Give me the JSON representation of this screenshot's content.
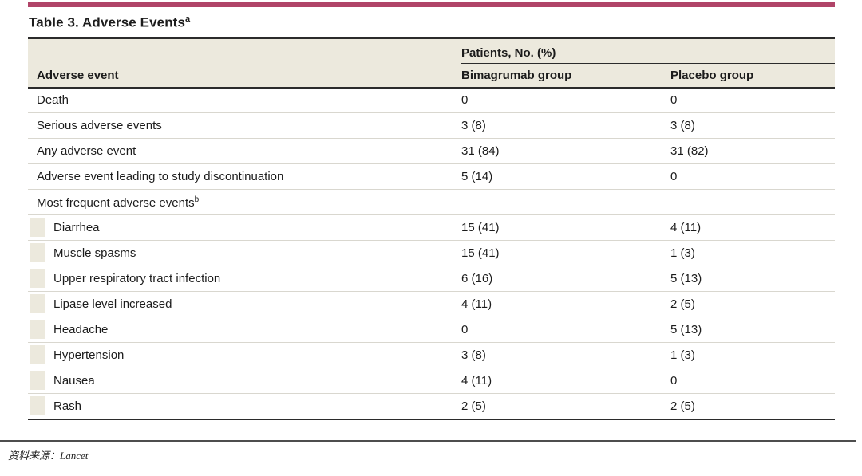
{
  "colors": {
    "accent_bar": "#b04468",
    "header_background": "#ece9dd",
    "rule_dark": "#2b2b2b",
    "row_separator": "#d9d7cf"
  },
  "title": {
    "text": "Table 3. Adverse Events",
    "sup": "a"
  },
  "table": {
    "group_header": "Patients, No. (%)",
    "columns": [
      "Adverse event",
      "Bimagrumab group",
      "Placebo group"
    ],
    "rows": [
      {
        "label": "Death",
        "bimagrumab": "0",
        "placebo": "0"
      },
      {
        "label": "Serious adverse events",
        "bimagrumab": "3 (8)",
        "placebo": "3 (8)"
      },
      {
        "label": "Any adverse event",
        "bimagrumab": "31 (84)",
        "placebo": "31 (82)"
      },
      {
        "label": "Adverse event leading to study discontinuation",
        "bimagrumab": "5 (14)",
        "placebo": "0"
      },
      {
        "label": "Most frequent adverse events",
        "sup": "b",
        "bimagrumab": "",
        "placebo": ""
      },
      {
        "label": "Diarrhea",
        "bimagrumab": "15 (41)",
        "placebo": "4 (11)"
      },
      {
        "label": "Muscle spasms",
        "bimagrumab": "15 (41)",
        "placebo": "1 (3)"
      },
      {
        "label": "Upper respiratory tract infection",
        "bimagrumab": "6 (16)",
        "placebo": "5 (13)"
      },
      {
        "label": "Lipase level increased",
        "bimagrumab": "4 (11)",
        "placebo": "2 (5)"
      },
      {
        "label": "Headache",
        "bimagrumab": "0",
        "placebo": "5 (13)"
      },
      {
        "label": "Hypertension",
        "bimagrumab": "3 (8)",
        "placebo": "1 (3)"
      },
      {
        "label": "Nausea",
        "bimagrumab": "4 (11)",
        "placebo": "0"
      },
      {
        "label": "Rash",
        "bimagrumab": "2 (5)",
        "placebo": "2 (5)"
      }
    ]
  },
  "footer": {
    "source": "资料来源：Lancet"
  }
}
